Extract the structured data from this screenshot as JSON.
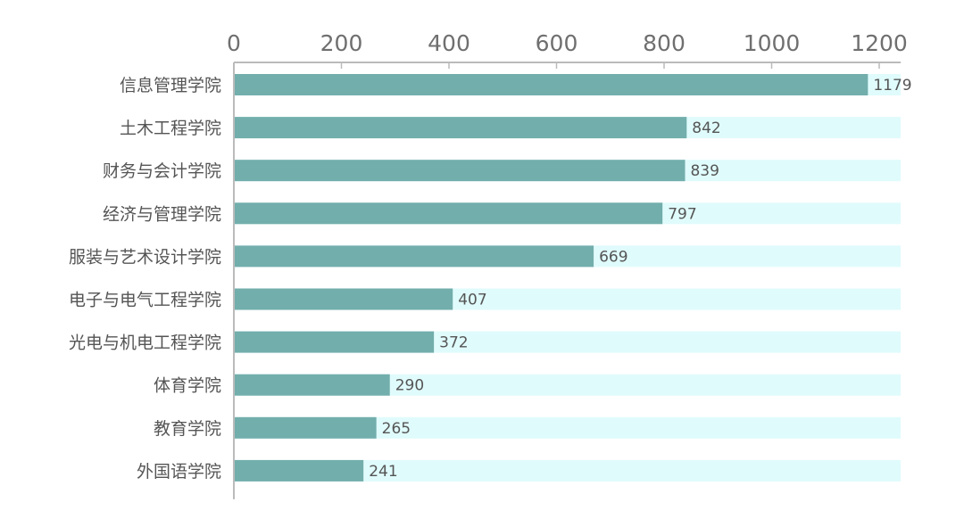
{
  "chart_data": {
    "type": "bar",
    "orientation": "horizontal",
    "title": "",
    "xlabel": "",
    "ylabel": "",
    "xlim": [
      0,
      1240
    ],
    "xticks": [
      0,
      200,
      400,
      600,
      800,
      1000,
      1200
    ],
    "x_axis_position": "top",
    "grid": false,
    "categories": [
      "信息管理学院",
      "土木工程学院",
      "财务与会计学院",
      "经济与管理学院",
      "服装与艺术设计学院",
      "电子与电气工程学院",
      "光电与机电工程学院",
      "体育学院",
      "教育学院",
      "外国语学院"
    ],
    "values": [
      1179,
      842,
      839,
      797,
      669,
      407,
      372,
      290,
      265,
      241
    ],
    "data_labels": [
      "1179",
      "842",
      "839",
      "797",
      "669",
      "407",
      "372",
      "290",
      "265",
      "241"
    ],
    "bar_color": "#72aeac",
    "track_color": "#e0fbfc",
    "axis_color": "#bbbbbb"
  }
}
